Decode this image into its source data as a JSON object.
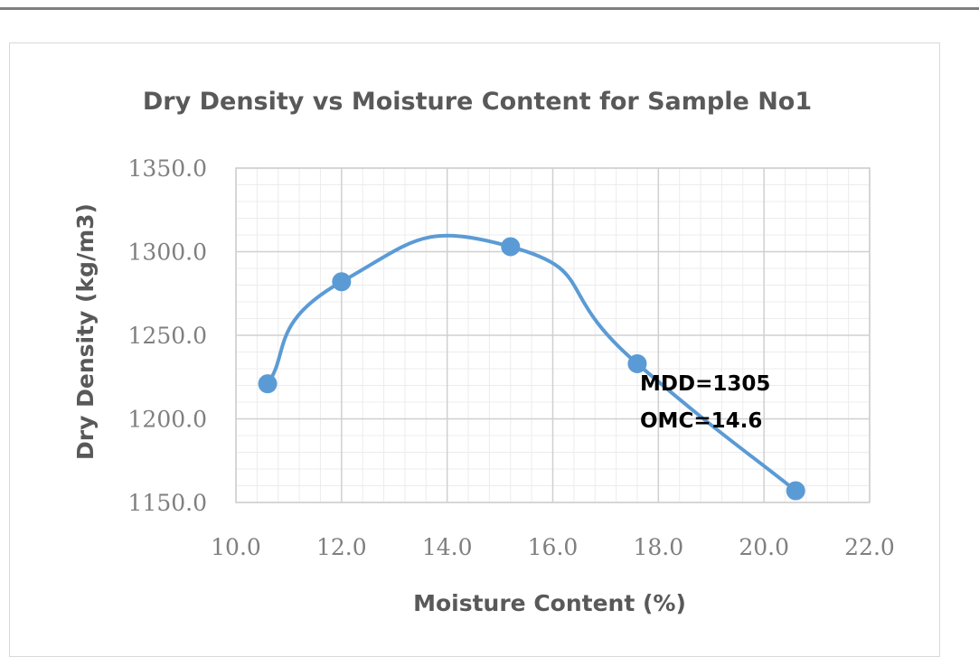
{
  "chart_data": {
    "type": "scatter",
    "title": "Dry Density vs Moisture Content for Sample No1",
    "xlabel": "Moisture Content  (%)",
    "ylabel": "Dry Density (kg/m3)",
    "xlim": [
      10.0,
      22.0
    ],
    "ylim": [
      1150.0,
      1350.0
    ],
    "x_ticks": [
      "10.0",
      "12.0",
      "14.0",
      "16.0",
      "18.0",
      "20.0",
      "22.0"
    ],
    "y_ticks": [
      "1350.0",
      "1300.0",
      "1250.0",
      "1200.0",
      "1150.0"
    ],
    "series": [
      {
        "x": [
          10.6,
          12.0,
          15.2,
          17.6,
          20.6
        ],
        "y": [
          1221,
          1282,
          1303,
          1233,
          1157
        ]
      }
    ],
    "annotations": [
      "MDD=1305",
      "OMC=14.6"
    ],
    "grid": true,
    "line_style": "smoothed with markers",
    "colors": {
      "series": "#5b9bd5",
      "grid_major": "#d0d0d0",
      "grid_minor": "#ececec"
    }
  }
}
